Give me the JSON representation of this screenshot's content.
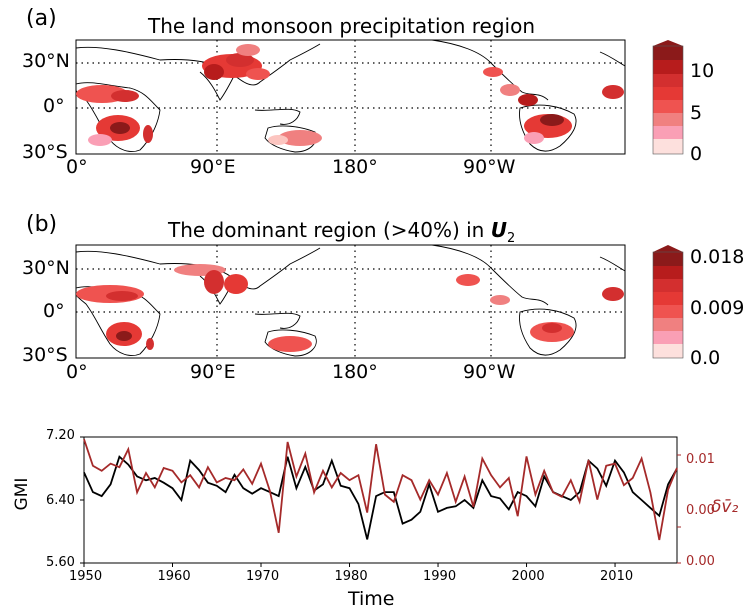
{
  "panel_a": {
    "letter": "(a)",
    "title": "The land monsoon precipitation region",
    "colorbar_ticks": [
      "10",
      "5",
      "0"
    ]
  },
  "panel_b": {
    "letter": "(b)",
    "title_prefix": "The dominant region (>40%) in ",
    "title_symbol": "U",
    "title_subscript": "2",
    "colorbar_ticks": [
      "0.018",
      "0.009",
      "0.0"
    ]
  },
  "map_axes": {
    "lat_ticks": [
      "30°N",
      "0°",
      "30°S"
    ],
    "lon_ticks": [
      "0°",
      "90°E",
      "180°",
      "90°W"
    ]
  },
  "colors": {
    "levels": [
      "#fde0dd",
      "#fcc5c0",
      "#fa9fb5",
      "#f08080",
      "#ef5350",
      "#e53935",
      "#d32f2f",
      "#b71c1c",
      "#8b1a1a"
    ],
    "gmi_line": "#000000",
    "dv2_line": "#a52a2a"
  },
  "chart_data": {
    "type": "line",
    "xlabel": "Time",
    "ylabel": "GMI",
    "y2label": "δv̄₂",
    "xlim": [
      1950,
      2017
    ],
    "ylim": [
      5.6,
      7.2
    ],
    "y2lim": [
      -0.005,
      0.0125
    ],
    "x_ticks": [
      "1950",
      "1960",
      "1970",
      "1980",
      "1990",
      "2000",
      "2010"
    ],
    "y_ticks": [
      "7.20",
      "6.40",
      "5.60"
    ],
    "y2_ticks": [
      "0.01",
      "0.00",
      "0.00"
    ],
    "x": [
      1950,
      1951,
      1952,
      1953,
      1954,
      1955,
      1956,
      1957,
      1958,
      1959,
      1960,
      1961,
      1962,
      1963,
      1964,
      1965,
      1966,
      1967,
      1968,
      1969,
      1970,
      1971,
      1972,
      1973,
      1974,
      1975,
      1976,
      1977,
      1978,
      1979,
      1980,
      1981,
      1982,
      1983,
      1984,
      1985,
      1986,
      1987,
      1988,
      1989,
      1990,
      1991,
      1992,
      1993,
      1994,
      1995,
      1996,
      1997,
      1998,
      1999,
      2000,
      2001,
      2002,
      2003,
      2004,
      2005,
      2006,
      2007,
      2008,
      2009,
      2010,
      2011,
      2012,
      2013,
      2014,
      2015,
      2016,
      2017
    ],
    "series": [
      {
        "name": "GMI",
        "axis": "left",
        "values": [
          6.75,
          6.5,
          6.45,
          6.6,
          6.95,
          6.85,
          6.7,
          6.65,
          6.68,
          6.62,
          6.55,
          6.4,
          6.9,
          6.78,
          6.62,
          6.58,
          6.5,
          6.72,
          6.55,
          6.48,
          6.55,
          6.5,
          6.45,
          6.95,
          6.55,
          6.82,
          6.52,
          6.6,
          6.9,
          6.58,
          6.55,
          6.35,
          5.9,
          6.45,
          6.5,
          6.5,
          6.1,
          6.15,
          6.25,
          6.6,
          6.25,
          6.3,
          6.32,
          6.4,
          6.3,
          6.65,
          6.45,
          6.42,
          6.28,
          6.5,
          6.45,
          6.32,
          6.7,
          6.5,
          6.45,
          6.4,
          6.5,
          6.9,
          6.8,
          6.58,
          6.9,
          6.75,
          6.5,
          6.4,
          6.3,
          6.2,
          6.6,
          6.8
        ],
        "dv2_values": []
      },
      {
        "name": "δv̄₂",
        "axis": "right",
        "values": [
          0.0122,
          0.0085,
          0.0078,
          0.0088,
          0.0083,
          0.0108,
          0.0048,
          0.0075,
          0.0055,
          0.0082,
          0.0078,
          0.0062,
          0.0072,
          0.0055,
          0.0083,
          0.0062,
          0.0068,
          0.0065,
          0.008,
          0.006,
          0.0088,
          0.005,
          -0.0008,
          0.0118,
          0.007,
          0.0102,
          0.0048,
          0.0078,
          0.0055,
          0.0075,
          0.0065,
          0.0072,
          0.002,
          0.0115,
          0.0045,
          0.0035,
          0.0072,
          0.0065,
          0.0038,
          0.0065,
          0.0045,
          0.0075,
          0.0035,
          0.007,
          0.0028,
          0.0095,
          0.0072,
          0.0055,
          0.0068,
          0.0015,
          0.0098,
          0.0045,
          0.0078,
          0.0048,
          0.0042,
          0.0065,
          0.0035,
          0.0093,
          0.0038,
          0.0085,
          0.0088,
          0.0058,
          0.0068,
          0.0095,
          0.0048,
          -0.0018,
          0.0052,
          0.0082
        ]
      }
    ]
  }
}
